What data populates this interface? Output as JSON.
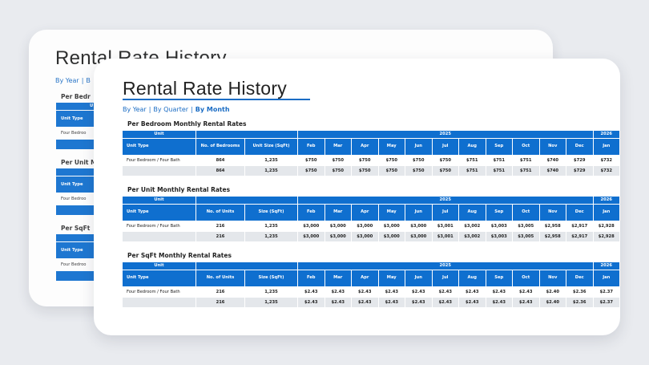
{
  "title": "Rental Rate History",
  "nav": {
    "by_year": "By Year",
    "by_quarter": "By Quarter",
    "by_month": "By Month",
    "sep": "|"
  },
  "back_card": {
    "title": "Rental Rate History",
    "nav_by_year": "By Year",
    "nav_sep": "|",
    "nav_fragment": "B",
    "section_1": "Per Bedr",
    "section_2": "Per Unit M",
    "section_3": "Per SqFt",
    "unit_label": "Unit Type",
    "row_label": "Four Bedroo",
    "top_fragment": "U"
  },
  "columns": {
    "unit": "Unit",
    "year_main": "2025",
    "year_next": "2026",
    "unit_type": "Unit Type",
    "months": [
      "Feb",
      "Mar",
      "Apr",
      "May",
      "Jun",
      "Jul",
      "Aug",
      "Sep",
      "Oct",
      "Nov",
      "Dec",
      "Jan"
    ]
  },
  "tables": [
    {
      "title": "Per Bedroom Monthly Rental Rates",
      "count_header": "No. of Bedrooms",
      "size_header": "Unit Size (SqFt)",
      "rows": [
        {
          "unit_type": "Four Bedroom / Four Bath",
          "count": "864",
          "size": "1,235",
          "values": [
            "$750",
            "$750",
            "$750",
            "$750",
            "$750",
            "$750",
            "$751",
            "$751",
            "$751",
            "$740",
            "$729",
            "$732"
          ]
        },
        {
          "unit_type": "",
          "count": "864",
          "size": "1,235",
          "values": [
            "$750",
            "$750",
            "$750",
            "$750",
            "$750",
            "$750",
            "$751",
            "$751",
            "$751",
            "$740",
            "$729",
            "$732"
          ]
        }
      ]
    },
    {
      "title": "Per Unit Monthly Rental Rates",
      "count_header": "No. of Units",
      "size_header": "Size (SqFt)",
      "rows": [
        {
          "unit_type": "Four Bedroom / Four Bath",
          "count": "216",
          "size": "1,235",
          "values": [
            "$3,000",
            "$3,000",
            "$3,000",
            "$3,000",
            "$3,000",
            "$3,001",
            "$3,002",
            "$3,003",
            "$3,005",
            "$2,958",
            "$2,917",
            "$2,928"
          ]
        },
        {
          "unit_type": "",
          "count": "216",
          "size": "1,235",
          "values": [
            "$3,000",
            "$3,000",
            "$3,000",
            "$3,000",
            "$3,000",
            "$3,001",
            "$3,002",
            "$3,003",
            "$3,005",
            "$2,958",
            "$2,917",
            "$2,928"
          ]
        }
      ]
    },
    {
      "title": "Per SqFt Monthly Rental Rates",
      "count_header": "No. of Units",
      "size_header": "Size (SqFt)",
      "rows": [
        {
          "unit_type": "Four Bedroom / Four Bath",
          "count": "216",
          "size": "1,235",
          "values": [
            "$2.43",
            "$2.43",
            "$2.43",
            "$2.43",
            "$2.43",
            "$2.43",
            "$2.43",
            "$2.43",
            "$2.43",
            "$2.40",
            "$2.36",
            "$2.37"
          ]
        },
        {
          "unit_type": "",
          "count": "216",
          "size": "1,235",
          "values": [
            "$2.43",
            "$2.43",
            "$2.43",
            "$2.43",
            "$2.43",
            "$2.43",
            "$2.43",
            "$2.43",
            "$2.43",
            "$2.40",
            "$2.36",
            "$2.37"
          ]
        }
      ]
    }
  ]
}
